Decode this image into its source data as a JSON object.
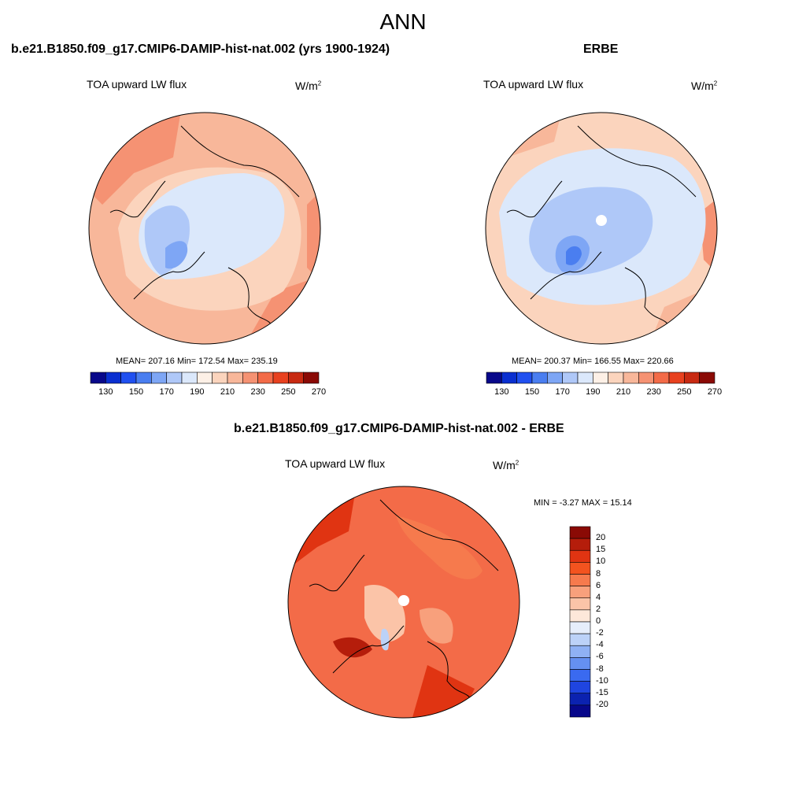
{
  "page_title": "ANN",
  "panels": [
    {
      "title": "b.e21.B1850.f09_g17.CMIP6-DAMIP-hist-nat.002 (yrs 1900-1924)",
      "variable": "TOA upward LW flux",
      "units_base": "W/m",
      "units_exp": "2",
      "stats": "MEAN= 207.16  Min= 172.54  Max= 235.19"
    },
    {
      "title": "ERBE",
      "variable": "TOA upward LW flux",
      "units_base": "W/m",
      "units_exp": "2",
      "stats": "MEAN= 200.37  Min= 166.55  Max= 220.66"
    },
    {
      "title": "b.e21.B1850.f09_g17.CMIP6-DAMIP-hist-nat.002 - ERBE",
      "variable": "TOA upward LW flux",
      "units_base": "W/m",
      "units_exp": "2",
      "stats": "MIN =  -3.27 MAX =  15.14"
    }
  ],
  "colorbar_abs": {
    "labels": [
      "130",
      "150",
      "170",
      "190",
      "210",
      "230",
      "250",
      "270"
    ],
    "colors": [
      "#08088a",
      "#0a2fd0",
      "#2050f0",
      "#4a7ef0",
      "#7ea6f5",
      "#afc8f8",
      "#dbe8fb",
      "#fdf0e6",
      "#fbd4bd",
      "#f8b79a",
      "#f59273",
      "#f36b48",
      "#e8411f",
      "#c82a12",
      "#8a0a05"
    ]
  },
  "colorbar_diff": {
    "labels": [
      "20",
      "15",
      "10",
      "8",
      "6",
      "4",
      "2",
      "0",
      "-2",
      "-4",
      "-6",
      "-8",
      "-10",
      "-15",
      "-20"
    ],
    "colors": [
      "#8a0a05",
      "#b51d0b",
      "#e03412",
      "#f3531f",
      "#f67a4d",
      "#f8a07c",
      "#fbc4a8",
      "#fde8da",
      "#e6eefb",
      "#bcd2f8",
      "#8fb1f4",
      "#6590f1",
      "#3a6af0",
      "#1f45e0",
      "#0b22b0",
      "#07078a"
    ]
  },
  "map_fills": {
    "ocean_model": "#f8b79a",
    "ocean_obs": "#fbd4bd",
    "ice_light": "#dbe8fb",
    "ice_mid": "#afc8f8",
    "ice_dark": "#7ea6f5",
    "ice_darkest": "#4a7ef0",
    "diff_base": "#f36b48",
    "diff_dark": "#e03412",
    "diff_light": "#fbc4a8",
    "diff_neg": "#bcd2f8"
  }
}
